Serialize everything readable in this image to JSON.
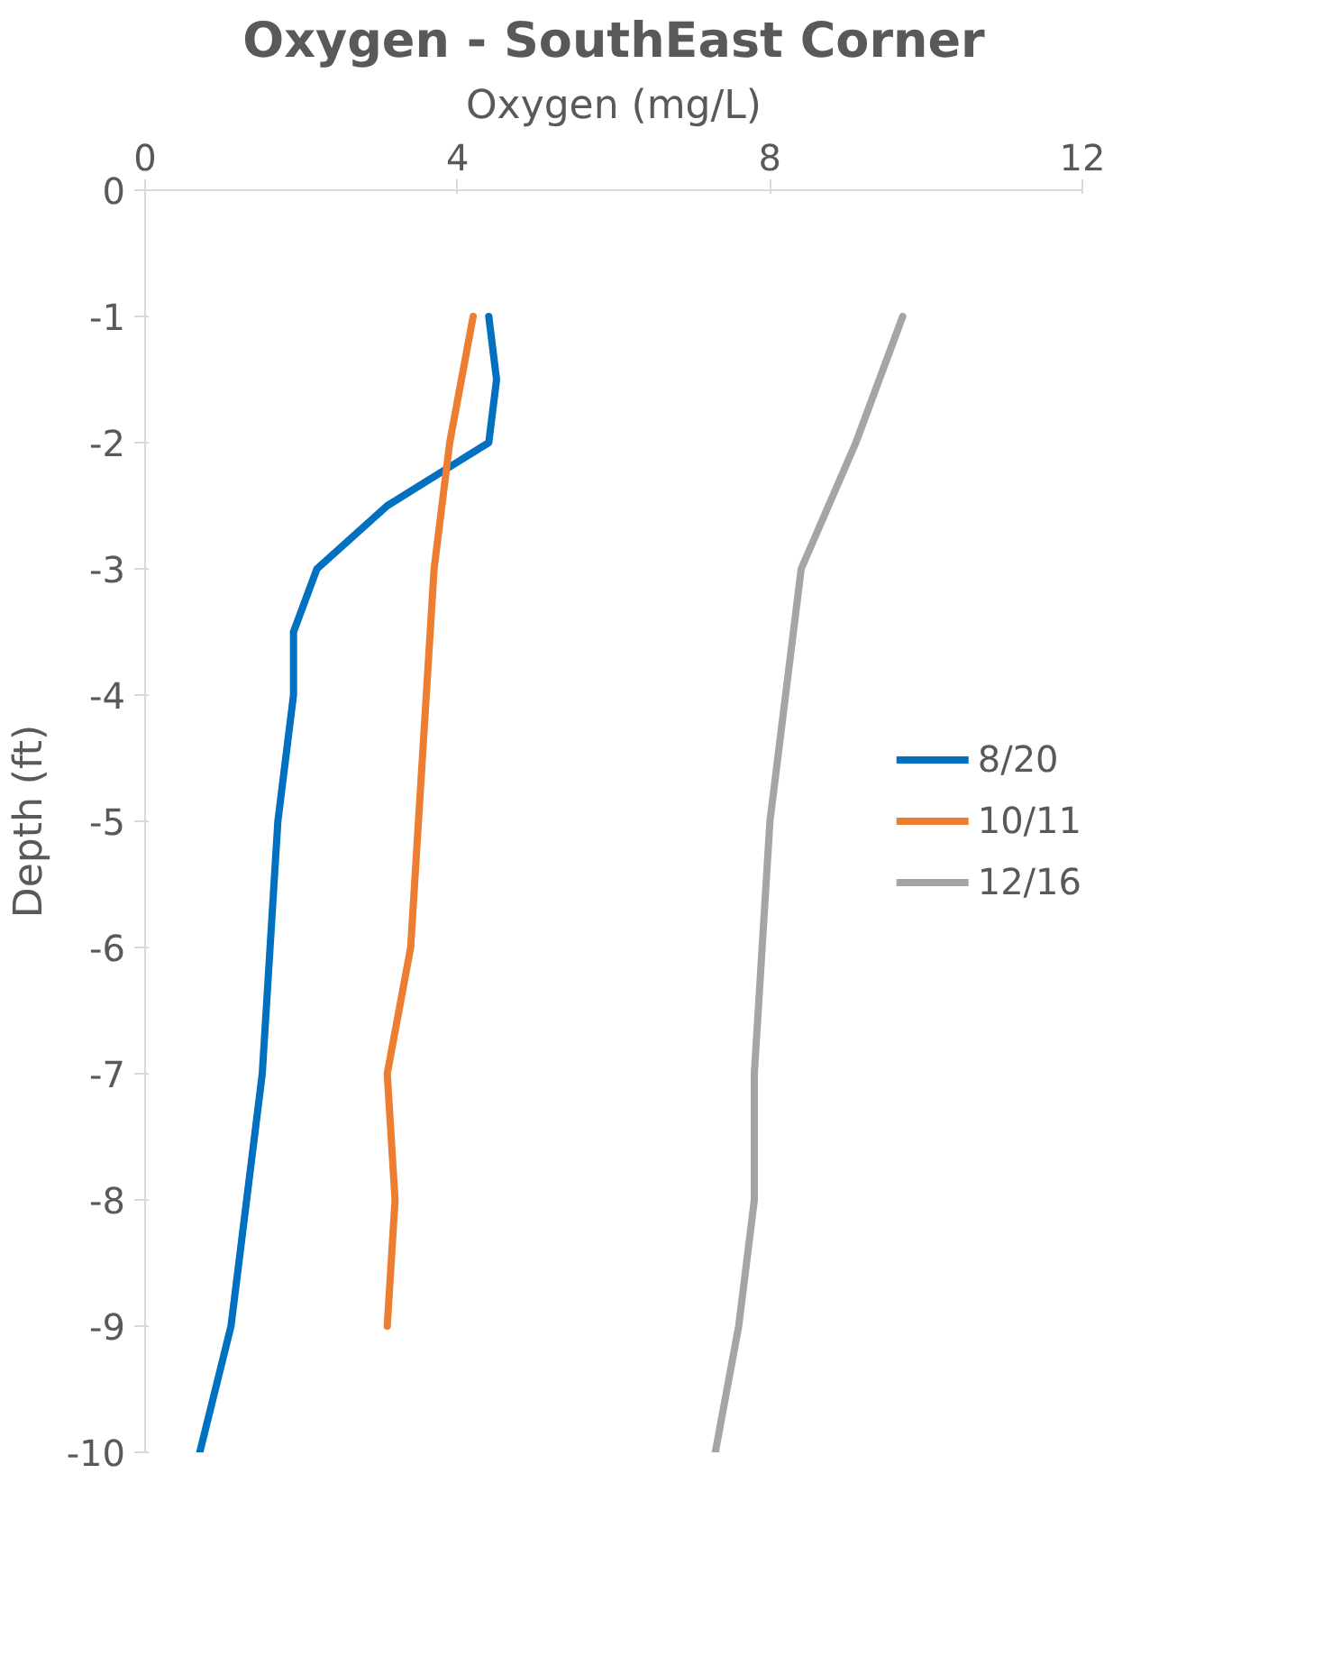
{
  "chart_data": {
    "type": "line",
    "title": "Oxygen - SouthEast Corner",
    "xlabel": "Oxygen (mg/L)",
    "ylabel": "Depth (ft)",
    "xlim": [
      0,
      12
    ],
    "xticks": [
      0,
      4,
      8,
      12
    ],
    "ylim": [
      -10,
      0
    ],
    "yticks": [
      0,
      -1,
      -2,
      -3,
      -4,
      -5,
      -6,
      -7,
      -8,
      -9,
      -10
    ],
    "grid": false,
    "legend": "right",
    "marker": "none",
    "line_style": "solid",
    "series": [
      {
        "name": "8/20",
        "color": "#0070c0",
        "x": [
          4.4,
          4.5,
          4.4,
          3.1,
          2.2,
          1.9,
          1.9,
          1.7,
          1.6,
          1.5,
          1.3,
          1.1,
          0.7
        ],
        "values": [
          -1,
          -1.5,
          -2,
          -2.5,
          -3,
          -3.5,
          -4,
          -5,
          -6,
          -7,
          -8,
          -9,
          -10
        ]
      },
      {
        "name": "10/11",
        "color": "#ed7d31",
        "x": [
          4.2,
          3.9,
          3.7,
          3.6,
          3.5,
          3.4,
          3.1,
          3.2,
          3.1
        ],
        "values": [
          -1,
          -2,
          -3,
          -4,
          -5,
          -6,
          -7,
          -8,
          -9
        ]
      },
      {
        "name": "12/16",
        "color": "#a5a5a5",
        "x": [
          9.7,
          9.1,
          8.4,
          8.2,
          8.0,
          7.9,
          7.8,
          7.8,
          7.6,
          7.3
        ],
        "values": [
          -1,
          -2,
          -3,
          -4,
          -5,
          -6,
          -7,
          -8,
          -9,
          -10
        ]
      }
    ]
  }
}
